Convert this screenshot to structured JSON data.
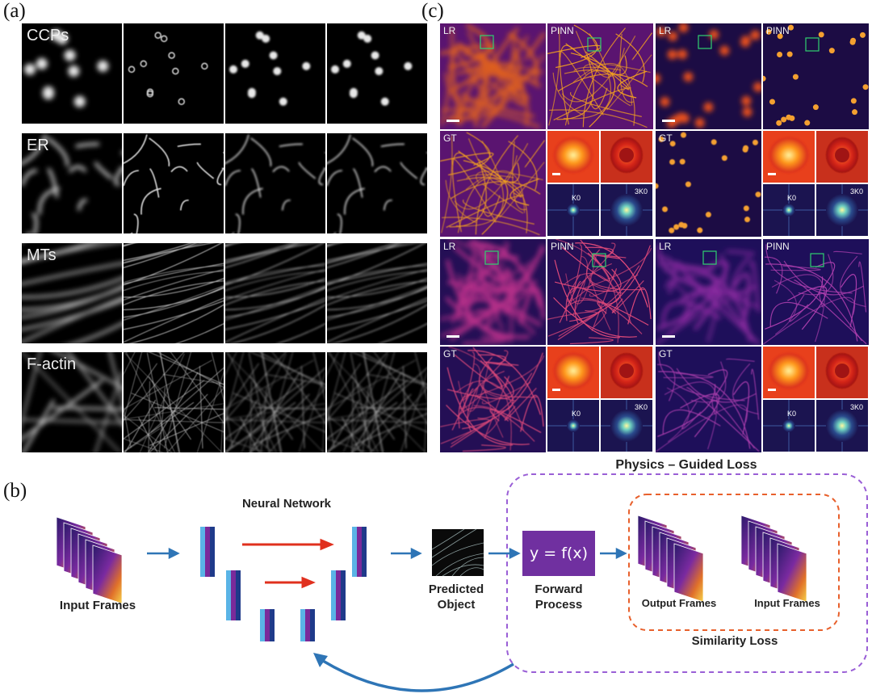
{
  "panels": {
    "a_label": "(a)",
    "b_label": "(b)",
    "c_label": "(c)"
  },
  "panel_a": {
    "rows": [
      {
        "label": "CCPs",
        "kind": "dots"
      },
      {
        "label": "ER",
        "kind": "mesh"
      },
      {
        "label": "MTs",
        "kind": "filaments"
      },
      {
        "label": "F-actin",
        "kind": "actin"
      }
    ]
  },
  "panel_c": {
    "blocks": [
      {
        "lr": "LR",
        "pinn": "PINN",
        "gt": "GT",
        "k0": "K0",
        "k3": "3K0",
        "sample": "filaments-dense"
      },
      {
        "lr": "LR",
        "pinn": "PINN",
        "gt": "GT",
        "k0": "K0",
        "k3": "3K0",
        "sample": "puncta"
      },
      {
        "lr": "LR",
        "pinn": "PINN",
        "gt": "GT",
        "k0": "K0",
        "k3": "3K0",
        "sample": "mesh"
      },
      {
        "lr": "LR",
        "pinn": "PINN",
        "gt": "GT",
        "k0": "K0",
        "k3": "3K0",
        "sample": "filaments"
      }
    ]
  },
  "panel_b": {
    "physics_loss_title": "Physics – Guided Loss",
    "neural_network": "Neural Network",
    "input_frames": "Input Frames",
    "predicted_object_1": "Predicted",
    "predicted_object_2": "Object",
    "formula": "y = f(x)",
    "forward_process_1": "Forward",
    "forward_process_2": "Process",
    "output_frames": "Output Frames",
    "input_frames_2": "Input Frames",
    "similarity_loss": "Similarity Loss"
  },
  "colors": {
    "arrow_blue": "#2e75b6",
    "arrow_red": "#e0301e",
    "physics_dashed": "#9a5fd6",
    "similarity_dashed": "#e8602c",
    "forward_box": "#7030a0"
  }
}
